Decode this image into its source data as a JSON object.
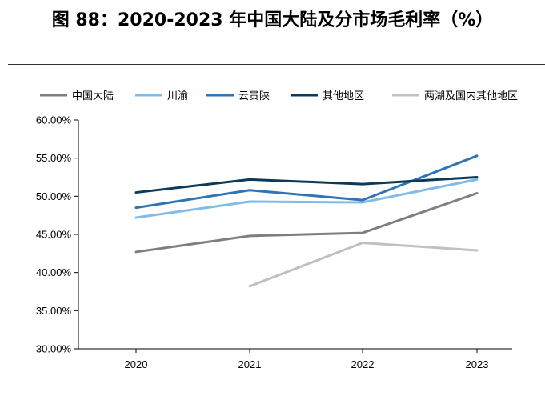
{
  "page": {
    "title": "图 88：2020-2023 年中国大陆及分市场毛利率（%）"
  },
  "chart_data": {
    "type": "line",
    "title": "",
    "xlabel": "",
    "ylabel": "",
    "x": [
      "2020",
      "2021",
      "2022",
      "2023"
    ],
    "ylim": [
      30,
      60
    ],
    "yticks": [
      "30.00%",
      "35.00%",
      "40.00%",
      "45.00%",
      "50.00%",
      "55.00%",
      "60.00%"
    ],
    "grid": false,
    "legend_position": "top",
    "series": [
      {
        "name": "中国大陆",
        "color": "#7f7f7f",
        "values": [
          42.7,
          44.8,
          45.2,
          50.4
        ]
      },
      {
        "name": "川渝",
        "color": "#7fbce9",
        "values": [
          47.2,
          49.3,
          49.2,
          52.2
        ]
      },
      {
        "name": "云贵陕",
        "color": "#2e75b6",
        "values": [
          48.5,
          50.8,
          49.5,
          55.3
        ]
      },
      {
        "name": "其他地区",
        "color": "#0b3a5c",
        "values": [
          50.5,
          52.2,
          51.6,
          52.5
        ]
      },
      {
        "name": "两湖及国内其他地区",
        "color": "#c0c0c0",
        "values": [
          null,
          38.2,
          43.9,
          42.9
        ]
      }
    ]
  }
}
